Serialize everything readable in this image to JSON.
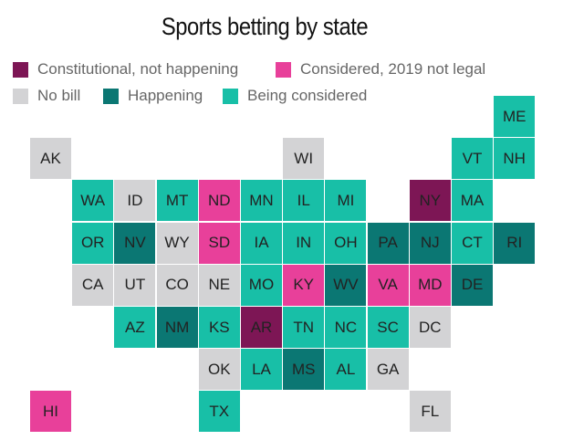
{
  "title": "Sports betting by state",
  "colors": {
    "constitutional": "#7d1655",
    "considered_not_legal": "#e8409a",
    "no_bill": "#d3d3d5",
    "happening": "#0b7773",
    "being_considered": "#18bfa7"
  },
  "legend": [
    {
      "key": "constitutional",
      "label": "Constitutional, not happening"
    },
    {
      "key": "considered_not_legal",
      "label": "Considered, 2019 not legal"
    },
    {
      "key": "no_bill",
      "label": "No bill"
    },
    {
      "key": "happening",
      "label": "Happening"
    },
    {
      "key": "being_considered",
      "label": "Being considered"
    }
  ],
  "states": [
    {
      "abbr": "ME",
      "status": "being_considered",
      "row": 0,
      "col": 11
    },
    {
      "abbr": "AK",
      "status": "no_bill",
      "row": 1,
      "col": 0
    },
    {
      "abbr": "WI",
      "status": "no_bill",
      "row": 1,
      "col": 6
    },
    {
      "abbr": "VT",
      "status": "being_considered",
      "row": 1,
      "col": 10
    },
    {
      "abbr": "NH",
      "status": "being_considered",
      "row": 1,
      "col": 11
    },
    {
      "abbr": "WA",
      "status": "being_considered",
      "row": 2,
      "col": 1
    },
    {
      "abbr": "ID",
      "status": "no_bill",
      "row": 2,
      "col": 2
    },
    {
      "abbr": "MT",
      "status": "being_considered",
      "row": 2,
      "col": 3
    },
    {
      "abbr": "ND",
      "status": "considered_not_legal",
      "row": 2,
      "col": 4
    },
    {
      "abbr": "MN",
      "status": "being_considered",
      "row": 2,
      "col": 5
    },
    {
      "abbr": "IL",
      "status": "being_considered",
      "row": 2,
      "col": 6
    },
    {
      "abbr": "MI",
      "status": "being_considered",
      "row": 2,
      "col": 7
    },
    {
      "abbr": "NY",
      "status": "constitutional",
      "row": 2,
      "col": 9
    },
    {
      "abbr": "MA",
      "status": "being_considered",
      "row": 2,
      "col": 10
    },
    {
      "abbr": "OR",
      "status": "being_considered",
      "row": 3,
      "col": 1
    },
    {
      "abbr": "NV",
      "status": "happening",
      "row": 3,
      "col": 2
    },
    {
      "abbr": "WY",
      "status": "no_bill",
      "row": 3,
      "col": 3
    },
    {
      "abbr": "SD",
      "status": "considered_not_legal",
      "row": 3,
      "col": 4
    },
    {
      "abbr": "IA",
      "status": "being_considered",
      "row": 3,
      "col": 5
    },
    {
      "abbr": "IN",
      "status": "being_considered",
      "row": 3,
      "col": 6
    },
    {
      "abbr": "OH",
      "status": "being_considered",
      "row": 3,
      "col": 7
    },
    {
      "abbr": "PA",
      "status": "happening",
      "row": 3,
      "col": 8
    },
    {
      "abbr": "NJ",
      "status": "happening",
      "row": 3,
      "col": 9
    },
    {
      "abbr": "CT",
      "status": "being_considered",
      "row": 3,
      "col": 10
    },
    {
      "abbr": "RI",
      "status": "happening",
      "row": 3,
      "col": 11
    },
    {
      "abbr": "CA",
      "status": "no_bill",
      "row": 4,
      "col": 1
    },
    {
      "abbr": "UT",
      "status": "no_bill",
      "row": 4,
      "col": 2
    },
    {
      "abbr": "CO",
      "status": "no_bill",
      "row": 4,
      "col": 3
    },
    {
      "abbr": "NE",
      "status": "no_bill",
      "row": 4,
      "col": 4
    },
    {
      "abbr": "MO",
      "status": "being_considered",
      "row": 4,
      "col": 5
    },
    {
      "abbr": "KY",
      "status": "considered_not_legal",
      "row": 4,
      "col": 6
    },
    {
      "abbr": "WV",
      "status": "happening",
      "row": 4,
      "col": 7
    },
    {
      "abbr": "VA",
      "status": "considered_not_legal",
      "row": 4,
      "col": 8
    },
    {
      "abbr": "MD",
      "status": "considered_not_legal",
      "row": 4,
      "col": 9
    },
    {
      "abbr": "DE",
      "status": "happening",
      "row": 4,
      "col": 10
    },
    {
      "abbr": "AZ",
      "status": "being_considered",
      "row": 5,
      "col": 2
    },
    {
      "abbr": "NM",
      "status": "happening",
      "row": 5,
      "col": 3
    },
    {
      "abbr": "KS",
      "status": "being_considered",
      "row": 5,
      "col": 4
    },
    {
      "abbr": "AR",
      "status": "constitutional",
      "row": 5,
      "col": 5
    },
    {
      "abbr": "TN",
      "status": "being_considered",
      "row": 5,
      "col": 6
    },
    {
      "abbr": "NC",
      "status": "being_considered",
      "row": 5,
      "col": 7
    },
    {
      "abbr": "SC",
      "status": "being_considered",
      "row": 5,
      "col": 8
    },
    {
      "abbr": "DC",
      "status": "no_bill",
      "row": 5,
      "col": 9
    },
    {
      "abbr": "OK",
      "status": "no_bill",
      "row": 6,
      "col": 4
    },
    {
      "abbr": "LA",
      "status": "being_considered",
      "row": 6,
      "col": 5
    },
    {
      "abbr": "MS",
      "status": "happening",
      "row": 6,
      "col": 6
    },
    {
      "abbr": "AL",
      "status": "being_considered",
      "row": 6,
      "col": 7
    },
    {
      "abbr": "GA",
      "status": "no_bill",
      "row": 6,
      "col": 8
    },
    {
      "abbr": "HI",
      "status": "considered_not_legal",
      "row": 7,
      "col": 0
    },
    {
      "abbr": "TX",
      "status": "being_considered",
      "row": 7,
      "col": 4
    },
    {
      "abbr": "FL",
      "status": "no_bill",
      "row": 7,
      "col": 9
    }
  ]
}
